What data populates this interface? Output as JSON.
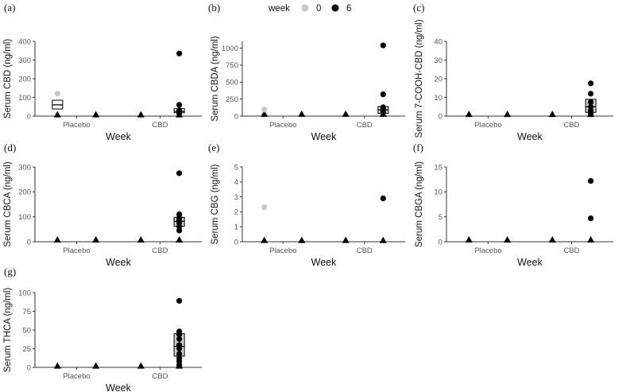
{
  "legend": {
    "title": "week",
    "entries": [
      {
        "label": "0",
        "color": "#c8c8c8"
      },
      {
        "label": "6",
        "color": "#000000"
      }
    ]
  },
  "colors": {
    "week0": "#c8c8c8",
    "week6": "#000000",
    "axis": "#333333",
    "box_fill": "#ffffff",
    "triangle": "#000000"
  },
  "chart_data": [
    {
      "type": "scatter",
      "panel": "(a)",
      "ylabel": "Serum CBD (ng/ml)",
      "xlabel": "Week",
      "categories": [
        "Placebo",
        "CBD"
      ],
      "ylim": [
        0,
        400
      ],
      "yticks": [
        0,
        100,
        200,
        300,
        400
      ],
      "series": [
        {
          "name": "0",
          "values": [
            {
              "x": "Placebo",
              "y": 120
            }
          ]
        },
        {
          "name": "6",
          "values": [
            {
              "x": "CBD",
              "y": 335
            },
            {
              "x": "CBD",
              "y": 60
            },
            {
              "x": "CBD",
              "y": 30
            },
            {
              "x": "CBD",
              "y": 22
            },
            {
              "x": "CBD",
              "y": 15
            }
          ]
        }
      ],
      "triangles": [
        {
          "x": "Placebo",
          "week": "0",
          "y": 8
        },
        {
          "x": "Placebo",
          "week": "6",
          "y": 8
        },
        {
          "x": "CBD",
          "week": "0",
          "y": 8
        },
        {
          "x": "CBD",
          "week": "6",
          "y": 8
        }
      ],
      "boxes": [
        {
          "x": "Placebo",
          "week": "0",
          "q1": 38,
          "median": 60,
          "q3": 85,
          "fill": "#ffffff"
        },
        {
          "x": "CBD",
          "week": "6",
          "q1": 18,
          "median": 25,
          "q3": 40,
          "fill": "#ffffff"
        }
      ]
    },
    {
      "type": "scatter",
      "panel": "(b)",
      "ylabel": "Serum CBDA (ng/ml)",
      "xlabel": "Week",
      "categories": [
        "Placebo",
        "CBD"
      ],
      "ylim": [
        0,
        1100
      ],
      "yticks": [
        0,
        250,
        500,
        750,
        1000
      ],
      "series": [
        {
          "name": "0",
          "values": [
            {
              "x": "Placebo",
              "y": 95
            }
          ]
        },
        {
          "name": "6",
          "values": [
            {
              "x": "CBD",
              "y": 1040
            },
            {
              "x": "CBD",
              "y": 320
            },
            {
              "x": "CBD",
              "y": 130
            },
            {
              "x": "CBD",
              "y": 100
            },
            {
              "x": "CBD",
              "y": 60
            }
          ]
        }
      ],
      "triangles": [
        {
          "x": "Placebo",
          "week": "0",
          "y": 30
        },
        {
          "x": "Placebo",
          "week": "6",
          "y": 30
        },
        {
          "x": "CBD",
          "week": "0",
          "y": 30
        },
        {
          "x": "CBD",
          "week": "6",
          "y": 30
        }
      ],
      "boxes": [
        {
          "x": "CBD",
          "week": "6",
          "q1": 40,
          "median": 90,
          "q3": 140,
          "fill": "#cfcfcf"
        }
      ]
    },
    {
      "type": "scatter",
      "panel": "(c)",
      "ylabel": "Serum 7-COOH-CBD (ng/ml)",
      "xlabel": "Week",
      "categories": [
        "Placebo",
        "CBD"
      ],
      "ylim": [
        0,
        40
      ],
      "yticks": [
        0,
        10,
        20,
        30,
        40
      ],
      "series": [
        {
          "name": "0",
          "values": []
        },
        {
          "name": "6",
          "values": [
            {
              "x": "CBD",
              "y": 17.5
            },
            {
              "x": "CBD",
              "y": 12
            },
            {
              "x": "CBD",
              "y": 7.5
            },
            {
              "x": "CBD",
              "y": 5
            },
            {
              "x": "CBD",
              "y": 3
            },
            {
              "x": "CBD",
              "y": 2
            },
            {
              "x": "CBD",
              "y": 1
            }
          ]
        }
      ],
      "triangles": [
        {
          "x": "Placebo",
          "week": "0",
          "y": 1
        },
        {
          "x": "Placebo",
          "week": "6",
          "y": 1
        },
        {
          "x": "CBD",
          "week": "0",
          "y": 1
        },
        {
          "x": "CBD",
          "week": "6",
          "y": 1
        }
      ],
      "boxes": [
        {
          "x": "CBD",
          "week": "6",
          "q1": 2,
          "median": 5,
          "q3": 9,
          "fill": "#cfcfcf"
        }
      ]
    },
    {
      "type": "scatter",
      "panel": "(d)",
      "ylabel": "Serum CBCA (ng/ml)",
      "xlabel": "Week",
      "categories": [
        "Placebo",
        "CBD"
      ],
      "ylim": [
        0,
        300
      ],
      "yticks": [
        0,
        100,
        200,
        300
      ],
      "series": [
        {
          "name": "0",
          "values": []
        },
        {
          "name": "6",
          "values": [
            {
              "x": "CBD",
              "y": 275
            },
            {
              "x": "CBD",
              "y": 110
            },
            {
              "x": "CBD",
              "y": 95
            },
            {
              "x": "CBD",
              "y": 85
            },
            {
              "x": "CBD",
              "y": 75
            },
            {
              "x": "CBD",
              "y": 60
            },
            {
              "x": "CBD",
              "y": 45
            }
          ]
        }
      ],
      "triangles": [
        {
          "x": "Placebo",
          "week": "0",
          "y": 8
        },
        {
          "x": "Placebo",
          "week": "6",
          "y": 8
        },
        {
          "x": "CBD",
          "week": "0",
          "y": 8
        },
        {
          "x": "CBD",
          "week": "6",
          "y": 8
        }
      ],
      "boxes": [
        {
          "x": "CBD",
          "week": "6",
          "q1": 62,
          "median": 82,
          "q3": 98,
          "fill": "#cfcfcf"
        }
      ]
    },
    {
      "type": "scatter",
      "panel": "(e)",
      "ylabel": "Serum CBG (ng/ml)",
      "xlabel": "Week",
      "categories": [
        "Placebo",
        "CBD"
      ],
      "ylim": [
        0,
        5
      ],
      "yticks": [
        0,
        1,
        2,
        3,
        4,
        5
      ],
      "series": [
        {
          "name": "0",
          "values": [
            {
              "x": "Placebo",
              "y": 2.3
            }
          ]
        },
        {
          "name": "6",
          "values": [
            {
              "x": "CBD",
              "y": 2.9
            }
          ]
        }
      ],
      "triangles": [
        {
          "x": "Placebo",
          "week": "0",
          "y": 0.1
        },
        {
          "x": "Placebo",
          "week": "6",
          "y": 0.1
        },
        {
          "x": "CBD",
          "week": "0",
          "y": 0.1
        },
        {
          "x": "CBD",
          "week": "6",
          "y": 0.1
        }
      ],
      "boxes": []
    },
    {
      "type": "scatter",
      "panel": "(f)",
      "ylabel": "Serum CBGA (ng/ml)",
      "xlabel": "Week",
      "categories": [
        "Placebo",
        "CBD"
      ],
      "ylim": [
        0,
        15
      ],
      "yticks": [
        0,
        5,
        10,
        15
      ],
      "series": [
        {
          "name": "0",
          "values": []
        },
        {
          "name": "6",
          "values": [
            {
              "x": "CBD",
              "y": 12.2
            },
            {
              "x": "CBD",
              "y": 4.7
            }
          ]
        }
      ],
      "triangles": [
        {
          "x": "Placebo",
          "week": "0",
          "y": 0.4
        },
        {
          "x": "Placebo",
          "week": "6",
          "y": 0.4
        },
        {
          "x": "CBD",
          "week": "0",
          "y": 0.4
        },
        {
          "x": "CBD",
          "week": "6",
          "y": 0.4
        }
      ],
      "boxes": []
    },
    {
      "type": "scatter",
      "panel": "(g)",
      "ylabel": "Serum THCA (ng/ml)",
      "xlabel": "Week",
      "categories": [
        "Placebo",
        "CBD"
      ],
      "ylim": [
        0,
        100
      ],
      "yticks": [
        0,
        25,
        50,
        75,
        100
      ],
      "series": [
        {
          "name": "0",
          "values": []
        },
        {
          "name": "6",
          "values": [
            {
              "x": "CBD",
              "y": 89
            },
            {
              "x": "CBD",
              "y": 48
            },
            {
              "x": "CBD",
              "y": 44
            },
            {
              "x": "CBD",
              "y": 38
            },
            {
              "x": "CBD",
              "y": 30
            },
            {
              "x": "CBD",
              "y": 25
            },
            {
              "x": "CBD",
              "y": 18
            },
            {
              "x": "CBD",
              "y": 12
            },
            {
              "x": "CBD",
              "y": 8
            },
            {
              "x": "CBD",
              "y": 3
            }
          ]
        }
      ],
      "triangles": [
        {
          "x": "Placebo",
          "week": "0",
          "y": 2
        },
        {
          "x": "Placebo",
          "week": "6",
          "y": 2
        },
        {
          "x": "CBD",
          "week": "0",
          "y": 2
        },
        {
          "x": "CBD",
          "week": "6",
          "y": 2
        }
      ],
      "boxes": [
        {
          "x": "CBD",
          "week": "6",
          "q1": 15,
          "median": 28,
          "q3": 45,
          "fill": "#cfcfcf"
        }
      ]
    }
  ]
}
